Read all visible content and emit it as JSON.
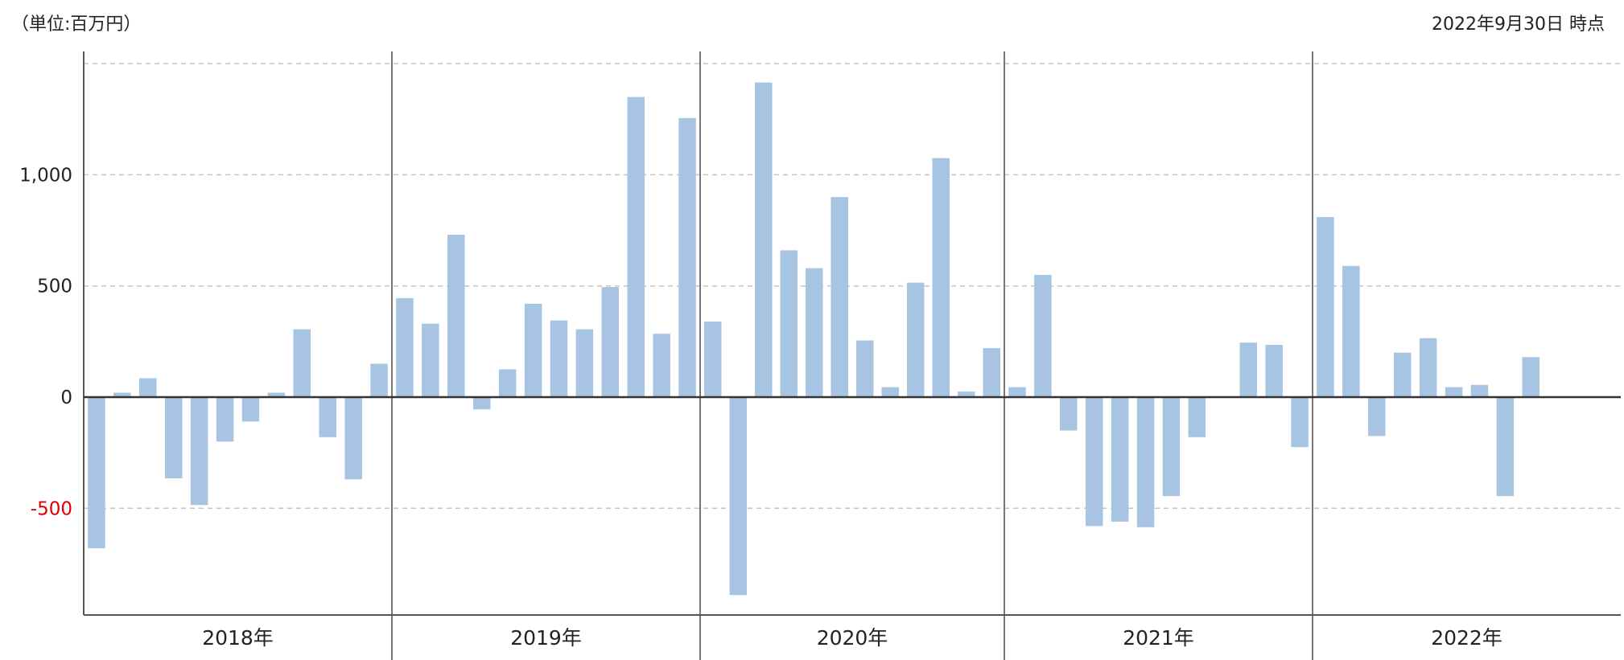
{
  "header": {
    "unit": "（単位:百万円）",
    "as_of": "2022年9月30日 時点"
  },
  "chart_data": {
    "type": "bar",
    "title": "",
    "xlabel": "",
    "ylabel": "",
    "ylim": [
      -990,
      1560
    ],
    "yticks": [
      {
        "value": 1000,
        "label": "1,000"
      },
      {
        "value": 500,
        "label": "500"
      },
      {
        "value": 0,
        "label": "0"
      },
      {
        "value": -500,
        "label": "-500"
      }
    ],
    "grid_lines": [
      1500,
      1000,
      500,
      -500
    ],
    "grid": true,
    "bar_color": "#a7c5e3",
    "negative_label_color": "#e00000",
    "groups": [
      {
        "label": "2018年",
        "values": [
          -680,
          20,
          85,
          -365,
          -485,
          -200,
          -110,
          20,
          305,
          -180,
          -370,
          150
        ]
      },
      {
        "label": "2019年",
        "values": [
          445,
          330,
          730,
          -55,
          125,
          420,
          345,
          305,
          495,
          1350,
          285,
          1255
        ]
      },
      {
        "label": "2020年",
        "values": [
          340,
          -890,
          1415,
          660,
          580,
          900,
          255,
          45,
          515,
          1075,
          25,
          220
        ]
      },
      {
        "label": "2021年",
        "values": [
          45,
          550,
          -150,
          -580,
          -560,
          -585,
          -445,
          -180,
          null,
          245,
          235,
          -225
        ]
      },
      {
        "label": "2022年",
        "values": [
          810,
          590,
          -175,
          200,
          265,
          45,
          55,
          -445,
          180
        ]
      }
    ]
  }
}
